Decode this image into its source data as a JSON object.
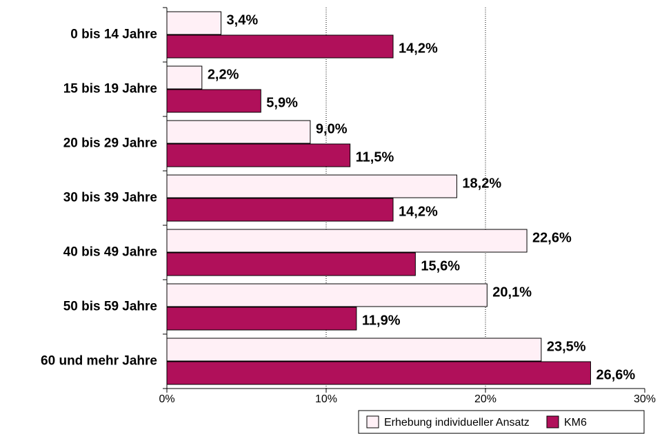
{
  "chart_data": {
    "type": "hbar",
    "categories": [
      "0 bis 14 Jahre",
      "15 bis 19 Jahre",
      "20 bis 29 Jahre",
      "30 bis 39 Jahre",
      "40 bis 49 Jahre",
      "50 bis 59 Jahre",
      "60 und mehr Jahre"
    ],
    "series": [
      {
        "name": "Erhebung individueller Ansatz",
        "color": "#fff0f6",
        "values": [
          3.4,
          2.2,
          9.0,
          18.2,
          22.6,
          20.1,
          23.5
        ],
        "value_labels": [
          "3,4%",
          "2,2%",
          "9,0%",
          "18,2%",
          "22,6%",
          "20,1%",
          "23,5%"
        ]
      },
      {
        "name": "KM6",
        "color": "#b0105a",
        "values": [
          14.2,
          5.9,
          11.5,
          14.2,
          15.6,
          11.9,
          26.6
        ],
        "value_labels": [
          "14,2%",
          "5,9%",
          "11,5%",
          "14,2%",
          "15,6%",
          "11,9%",
          "26,6%"
        ]
      }
    ],
    "xlim": [
      0,
      30
    ],
    "xticks": [
      {
        "value": 0,
        "label": "0%"
      },
      {
        "value": 10,
        "label": "10%"
      },
      {
        "value": 20,
        "label": "20%"
      },
      {
        "value": 30,
        "label": "30%"
      }
    ],
    "grid": true,
    "legend": "bottom-right"
  }
}
